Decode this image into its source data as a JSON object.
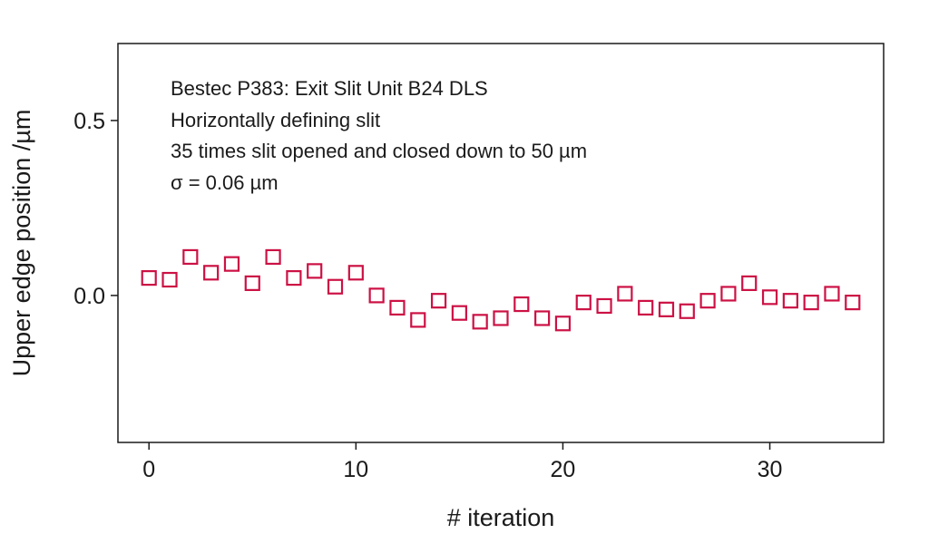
{
  "chart_data": {
    "type": "scatter",
    "xlabel": "# iteration",
    "ylabel": "Upper edge position /µm",
    "xlim": [
      -1.5,
      35.5
    ],
    "ylim": [
      -0.42,
      0.72
    ],
    "x_ticks": [
      0,
      10,
      20,
      30
    ],
    "x_tick_labels": [
      "0",
      "10",
      "20",
      "30"
    ],
    "y_ticks": [
      0.0,
      0.5
    ],
    "y_tick_labels": [
      "0.0",
      "0.5"
    ],
    "grid": false,
    "legend": "none",
    "annotations": [
      "Bestec P383: Exit Slit Unit B24 DLS",
      "Horizontally defining slit",
      "35 times slit opened and closed down to 50 µm",
      "σ = 0.06 µm"
    ],
    "series": [
      {
        "marker": "open-square",
        "color": "#cc1144",
        "x": [
          0,
          1,
          2,
          3,
          4,
          5,
          6,
          7,
          8,
          9,
          10,
          11,
          12,
          13,
          14,
          15,
          16,
          17,
          18,
          19,
          20,
          21,
          22,
          23,
          24,
          25,
          26,
          27,
          28,
          29,
          30,
          31,
          32,
          33,
          34
        ],
        "y": [
          0.05,
          0.045,
          0.11,
          0.065,
          0.09,
          0.035,
          0.11,
          0.05,
          0.07,
          0.025,
          0.065,
          0.0,
          -0.035,
          -0.07,
          -0.015,
          -0.05,
          -0.075,
          -0.065,
          -0.025,
          -0.065,
          -0.08,
          -0.02,
          -0.03,
          0.005,
          -0.035,
          -0.04,
          -0.045,
          -0.015,
          0.005,
          0.035,
          -0.005,
          -0.015,
          -0.02,
          0.005,
          -0.02
        ]
      }
    ]
  }
}
